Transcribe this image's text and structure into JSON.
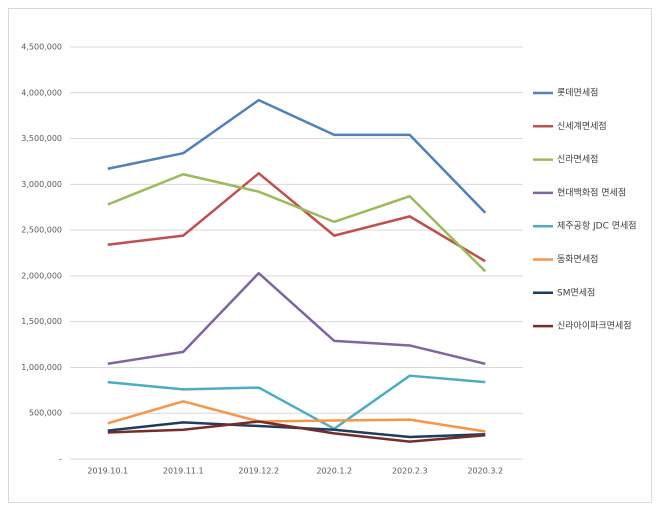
{
  "chart_data": {
    "type": "line",
    "categories": [
      "2019.10.1",
      "2019.11.1",
      "2019.12.2",
      "2020.1.2",
      "2020.2.3",
      "2020.3.2"
    ],
    "series": [
      {
        "name": "롯데면세점",
        "color": "#4f81bd",
        "values": [
          3170000,
          3340000,
          3920000,
          3540000,
          3540000,
          2690000
        ]
      },
      {
        "name": "신세계면세점",
        "color": "#c0504d",
        "values": [
          2340000,
          2440000,
          3120000,
          2440000,
          2650000,
          2160000
        ]
      },
      {
        "name": "신라면세점",
        "color": "#9bbb59",
        "values": [
          2780000,
          3110000,
          2920000,
          2590000,
          2870000,
          2050000
        ]
      },
      {
        "name": "현대백화점 면세점",
        "color": "#8064a2",
        "values": [
          1040000,
          1170000,
          2030000,
          1290000,
          1240000,
          1040000
        ]
      },
      {
        "name": "제주공항 JDC 면세점",
        "color": "#4bacc6",
        "values": [
          840000,
          760000,
          780000,
          330000,
          910000,
          840000
        ]
      },
      {
        "name": "동화면세점",
        "color": "#f79646",
        "values": [
          390000,
          630000,
          410000,
          420000,
          430000,
          300000
        ]
      },
      {
        "name": "SM면세점",
        "color": "#1f3c5e",
        "values": [
          310000,
          400000,
          360000,
          320000,
          240000,
          270000
        ]
      },
      {
        "name": "신라아이파크면세점",
        "color": "#772c2a",
        "values": [
          290000,
          320000,
          410000,
          280000,
          190000,
          260000
        ]
      }
    ],
    "ylim": [
      0,
      4500000
    ],
    "yticks": [
      {
        "value": 0,
        "label": "-"
      },
      {
        "value": 500000,
        "label": "500,000"
      },
      {
        "value": 1000000,
        "label": "1,000,000"
      },
      {
        "value": 1500000,
        "label": "1,500,000"
      },
      {
        "value": 2000000,
        "label": "2,000,000"
      },
      {
        "value": 2500000,
        "label": "2,500,000"
      },
      {
        "value": 3000000,
        "label": "3,000,000"
      },
      {
        "value": 3500000,
        "label": "3,500,000"
      },
      {
        "value": 4000000,
        "label": "4,000,000"
      },
      {
        "value": 4500000,
        "label": "4,500,000"
      }
    ],
    "grid": true,
    "legend": "right"
  }
}
